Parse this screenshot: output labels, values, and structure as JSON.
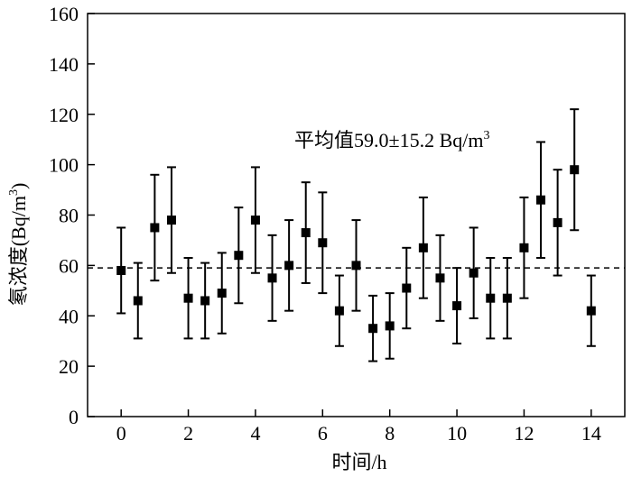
{
  "chart_data": {
    "type": "scatter",
    "xlabel": "时间/h",
    "ylabel": "氡浓度(Bq/m³)",
    "ylabel_main": "氡浓度(Bq/m",
    "ylabel_sup": "3",
    "ylabel_close": ")",
    "annotation": "平均值59.0±15.2 Bq/m",
    "annotation_sup": "3",
    "xlim": [
      -1,
      15
    ],
    "ylim": [
      0,
      160
    ],
    "xticks": [
      0,
      2,
      4,
      6,
      8,
      10,
      12,
      14
    ],
    "yticks": [
      0,
      20,
      40,
      60,
      80,
      100,
      120,
      140,
      160
    ],
    "mean_line": 59.0,
    "grid": false,
    "marker_color": "#000000",
    "points": [
      {
        "x": 0,
        "y": 58,
        "low": 41,
        "high": 75
      },
      {
        "x": 0.5,
        "y": 46,
        "low": 31,
        "high": 61
      },
      {
        "x": 1,
        "y": 75,
        "low": 54,
        "high": 96
      },
      {
        "x": 1.5,
        "y": 78,
        "low": 57,
        "high": 99
      },
      {
        "x": 2,
        "y": 47,
        "low": 31,
        "high": 63
      },
      {
        "x": 2.5,
        "y": 46,
        "low": 31,
        "high": 61
      },
      {
        "x": 3,
        "y": 49,
        "low": 33,
        "high": 65
      },
      {
        "x": 3.5,
        "y": 64,
        "low": 45,
        "high": 83
      },
      {
        "x": 4,
        "y": 78,
        "low": 57,
        "high": 99
      },
      {
        "x": 4.5,
        "y": 55,
        "low": 38,
        "high": 72
      },
      {
        "x": 5,
        "y": 60,
        "low": 42,
        "high": 78
      },
      {
        "x": 5.5,
        "y": 73,
        "low": 53,
        "high": 93
      },
      {
        "x": 6,
        "y": 69,
        "low": 49,
        "high": 89
      },
      {
        "x": 6.5,
        "y": 42,
        "low": 28,
        "high": 56
      },
      {
        "x": 7,
        "y": 60,
        "low": 42,
        "high": 78
      },
      {
        "x": 7.5,
        "y": 35,
        "low": 22,
        "high": 48
      },
      {
        "x": 8,
        "y": 36,
        "low": 23,
        "high": 49
      },
      {
        "x": 8.5,
        "y": 51,
        "low": 35,
        "high": 67
      },
      {
        "x": 9,
        "y": 67,
        "low": 47,
        "high": 87
      },
      {
        "x": 9.5,
        "y": 55,
        "low": 38,
        "high": 72
      },
      {
        "x": 10,
        "y": 44,
        "low": 29,
        "high": 59
      },
      {
        "x": 10.5,
        "y": 57,
        "low": 39,
        "high": 75
      },
      {
        "x": 11,
        "y": 47,
        "low": 31,
        "high": 63
      },
      {
        "x": 11.5,
        "y": 47,
        "low": 31,
        "high": 63
      },
      {
        "x": 12,
        "y": 67,
        "low": 47,
        "high": 87
      },
      {
        "x": 12.5,
        "y": 86,
        "low": 63,
        "high": 109
      },
      {
        "x": 13,
        "y": 77,
        "low": 56,
        "high": 98
      },
      {
        "x": 13.5,
        "y": 98,
        "low": 74,
        "high": 122
      },
      {
        "x": 14,
        "y": 42,
        "low": 28,
        "high": 56
      }
    ]
  }
}
